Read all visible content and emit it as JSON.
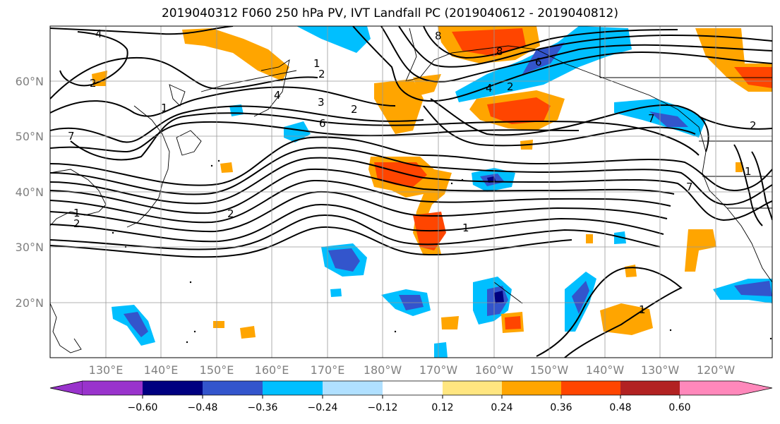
{
  "title": "2019040312 F060 250 hPa PV, IVT Landfall PC (2019040612 - 2019040812)",
  "map": {
    "lat_labels": [
      "60°N",
      "50°N",
      "40°N",
      "30°N",
      "20°N"
    ],
    "lon_labels": [
      "130°E",
      "140°E",
      "150°E",
      "160°E",
      "170°E",
      "180°W",
      "170°W",
      "160°W",
      "150°W",
      "140°W",
      "130°W",
      "120°W"
    ],
    "contour_labels": [
      "4",
      "7",
      "1",
      "2",
      "4",
      "3",
      "2",
      "6",
      "1",
      "2",
      "8",
      "8",
      "6",
      "4",
      "2",
      "1",
      "7",
      "2",
      "1",
      "2",
      "1",
      "1",
      "7",
      "2"
    ]
  },
  "colorbar": {
    "colors": [
      "#9933cc",
      "#000080",
      "#3355cc",
      "#00bfff",
      "#b0e0ff",
      "#ffffff",
      "#ffe680",
      "#ffa500",
      "#ff4500",
      "#b22222",
      "#ff88bb"
    ],
    "tick_labels": [
      "−0.60",
      "−0.48",
      "−0.36",
      "−0.24",
      "−0.12",
      "0.12",
      "0.24",
      "0.36",
      "0.48",
      "0.60"
    ]
  }
}
